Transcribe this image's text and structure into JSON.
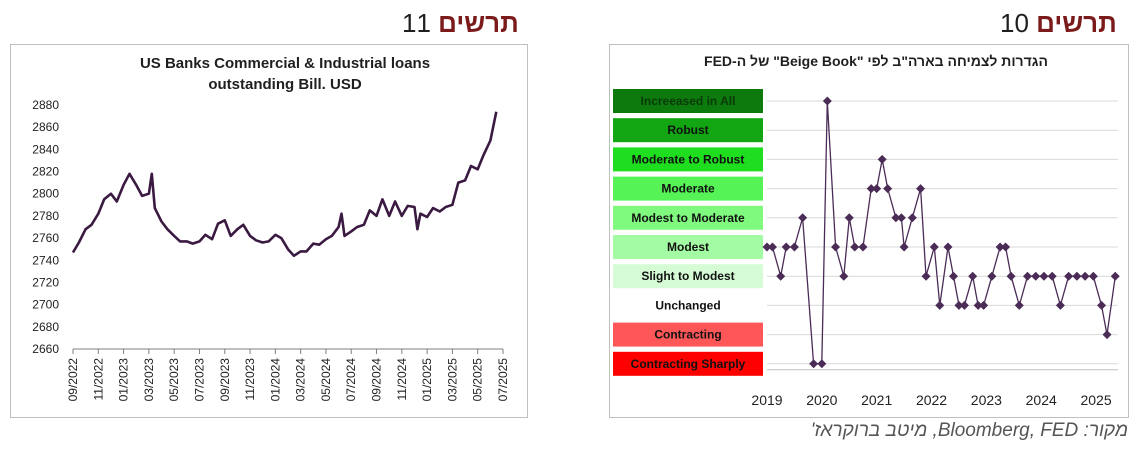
{
  "titles": {
    "left": {
      "word": "תרשים",
      "num": "11"
    },
    "right": {
      "word": "תרשים",
      "num": "10"
    }
  },
  "source": "מקור: Bloomberg, FED, מיטב ברוקראז'",
  "colors": {
    "line_left": "#3b1a42",
    "line_right": "#4a2c57",
    "heading": "#7b1a1a",
    "grid": "#d9d9d9"
  },
  "chart_data": [
    {
      "type": "line",
      "title": "US Banks Commercial & Industrial loans outstanding Bill. USD",
      "title_lines": [
        "US Banks Commercial & Industrial loans",
        "outstanding Bill. USD"
      ],
      "ylim": [
        2660,
        2880
      ],
      "yticks": [
        2660,
        2680,
        2700,
        2720,
        2740,
        2760,
        2780,
        2800,
        2820,
        2840,
        2860,
        2880
      ],
      "xlim": [
        "2022-09",
        "2025-07"
      ],
      "xticks": [
        "09/2022",
        "11/2022",
        "01/2023",
        "03/2023",
        "05/2023",
        "07/2023",
        "09/2023",
        "11/2023",
        "01/2024",
        "03/2024",
        "05/2024",
        "07/2024",
        "09/2024",
        "11/2024",
        "01/2025",
        "03/2025",
        "05/2025",
        "07/2025"
      ],
      "grid": false,
      "series": [
        {
          "values": [
            [
              "2022-09-01",
              2747
            ],
            [
              "2022-09-15",
              2756
            ],
            [
              "2022-10-01",
              2768
            ],
            [
              "2022-10-15",
              2772
            ],
            [
              "2022-11-01",
              2782
            ],
            [
              "2022-11-15",
              2795
            ],
            [
              "2022-12-01",
              2800
            ],
            [
              "2022-12-15",
              2793
            ],
            [
              "2023-01-01",
              2808
            ],
            [
              "2023-01-15",
              2818
            ],
            [
              "2023-02-01",
              2808
            ],
            [
              "2023-02-15",
              2798
            ],
            [
              "2023-03-01",
              2800
            ],
            [
              "2023-03-08",
              2818
            ],
            [
              "2023-03-15",
              2787
            ],
            [
              "2023-04-01",
              2775
            ],
            [
              "2023-04-15",
              2768
            ],
            [
              "2023-05-01",
              2762
            ],
            [
              "2023-05-15",
              2757
            ],
            [
              "2023-06-01",
              2757
            ],
            [
              "2023-06-15",
              2755
            ],
            [
              "2023-07-01",
              2757
            ],
            [
              "2023-07-15",
              2763
            ],
            [
              "2023-08-01",
              2759
            ],
            [
              "2023-08-15",
              2773
            ],
            [
              "2023-09-01",
              2776
            ],
            [
              "2023-09-15",
              2762
            ],
            [
              "2023-10-01",
              2768
            ],
            [
              "2023-10-15",
              2772
            ],
            [
              "2023-11-01",
              2762
            ],
            [
              "2023-11-15",
              2758
            ],
            [
              "2023-12-01",
              2756
            ],
            [
              "2023-12-15",
              2757
            ],
            [
              "2024-01-01",
              2763
            ],
            [
              "2024-01-15",
              2760
            ],
            [
              "2024-02-01",
              2750
            ],
            [
              "2024-02-15",
              2744
            ],
            [
              "2024-03-01",
              2748
            ],
            [
              "2024-03-15",
              2748
            ],
            [
              "2024-04-01",
              2755
            ],
            [
              "2024-04-15",
              2754
            ],
            [
              "2024-05-01",
              2759
            ],
            [
              "2024-05-15",
              2762
            ],
            [
              "2024-06-01",
              2770
            ],
            [
              "2024-06-08",
              2782
            ],
            [
              "2024-06-15",
              2762
            ],
            [
              "2024-07-01",
              2766
            ],
            [
              "2024-07-15",
              2770
            ],
            [
              "2024-08-01",
              2772
            ],
            [
              "2024-08-15",
              2785
            ],
            [
              "2024-09-01",
              2780
            ],
            [
              "2024-09-15",
              2795
            ],
            [
              "2024-10-01",
              2780
            ],
            [
              "2024-10-15",
              2793
            ],
            [
              "2024-11-01",
              2780
            ],
            [
              "2024-11-15",
              2789
            ],
            [
              "2024-12-01",
              2788
            ],
            [
              "2024-12-08",
              2768
            ],
            [
              "2024-12-15",
              2782
            ],
            [
              "2025-01-01",
              2779
            ],
            [
              "2025-01-15",
              2787
            ],
            [
              "2025-02-01",
              2784
            ],
            [
              "2025-02-15",
              2788
            ],
            [
              "2025-03-01",
              2790
            ],
            [
              "2025-03-15",
              2810
            ],
            [
              "2025-04-01",
              2812
            ],
            [
              "2025-04-15",
              2825
            ],
            [
              "2025-05-01",
              2822
            ],
            [
              "2025-05-15",
              2835
            ],
            [
              "2025-06-01",
              2848
            ],
            [
              "2025-06-15",
              2874
            ]
          ]
        }
      ]
    },
    {
      "type": "line",
      "title": "הגדרות לצמיחה בארה\"ב לפי \"Beige Book\" של ה-FED",
      "xticks": [
        "2019",
        "2020",
        "2021",
        "2022",
        "2023",
        "2024",
        "2025"
      ],
      "xlim": [
        2019.0,
        2025.4
      ],
      "categories": [
        "Contracting Sharply",
        "Contracting",
        "Unchanged",
        "Slight to Modest",
        "Modest",
        "Modest to Moderate",
        "Moderate",
        "Moderate to Robust",
        "Robust",
        "Increeased in All"
      ],
      "category_colors": [
        "#ff0000",
        "#ff5757",
        "#ffffff",
        "#d6fcd6",
        "#a3fca3",
        "#7ffa7f",
        "#55f355",
        "#1fdd1f",
        "#12a612",
        "#0c7a0c"
      ],
      "ylim": [
        0,
        9
      ],
      "grid": true,
      "series": [
        {
          "values": [
            [
              2019.0,
              4
            ],
            [
              2019.1,
              4
            ],
            [
              2019.25,
              3
            ],
            [
              2019.35,
              4
            ],
            [
              2019.5,
              4
            ],
            [
              2019.65,
              5
            ],
            [
              2019.85,
              0
            ],
            [
              2020.0,
              0
            ],
            [
              2020.1,
              9
            ],
            [
              2020.25,
              4
            ],
            [
              2020.4,
              3
            ],
            [
              2020.5,
              5
            ],
            [
              2020.6,
              4
            ],
            [
              2020.75,
              4
            ],
            [
              2020.9,
              6
            ],
            [
              2021.0,
              6
            ],
            [
              2021.1,
              7
            ],
            [
              2021.2,
              6
            ],
            [
              2021.35,
              5
            ],
            [
              2021.45,
              5
            ],
            [
              2021.5,
              4
            ],
            [
              2021.65,
              5
            ],
            [
              2021.8,
              6
            ],
            [
              2021.9,
              3
            ],
            [
              2022.05,
              4
            ],
            [
              2022.15,
              2
            ],
            [
              2022.3,
              4
            ],
            [
              2022.4,
              3
            ],
            [
              2022.5,
              2
            ],
            [
              2022.6,
              2
            ],
            [
              2022.75,
              3
            ],
            [
              2022.85,
              2
            ],
            [
              2022.95,
              2
            ],
            [
              2023.1,
              3
            ],
            [
              2023.25,
              4
            ],
            [
              2023.35,
              4
            ],
            [
              2023.45,
              3
            ],
            [
              2023.6,
              2
            ],
            [
              2023.75,
              3
            ],
            [
              2023.9,
              3
            ],
            [
              2024.05,
              3
            ],
            [
              2024.2,
              3
            ],
            [
              2024.35,
              2
            ],
            [
              2024.5,
              3
            ],
            [
              2024.65,
              3
            ],
            [
              2024.8,
              3
            ],
            [
              2024.95,
              3
            ],
            [
              2025.1,
              2
            ],
            [
              2025.2,
              1
            ],
            [
              2025.35,
              3
            ]
          ]
        }
      ]
    }
  ]
}
